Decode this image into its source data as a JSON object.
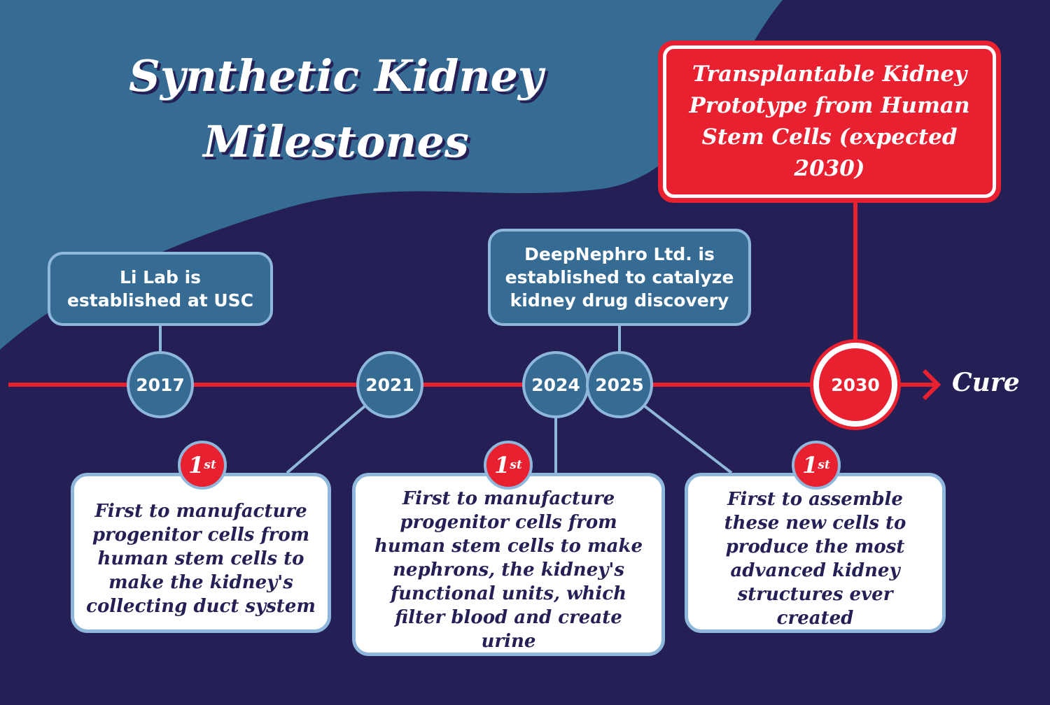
{
  "title": "Synthetic Kidney Milestones",
  "colors": {
    "background": "#241f54",
    "accent_blue": "#366b94",
    "border_light": "#8fb7dc",
    "red": "#e8202f"
  },
  "end_label": "Cure",
  "years": [
    "2017",
    "2021",
    "2024",
    "2025",
    "2030"
  ],
  "top_events": {
    "li_lab": "Li Lab is established at USC",
    "deepnephro": "DeepNephro Ltd. is established to catalyze kidney drug discovery",
    "goal": "Transplantable Kidney Prototype from Human Stem Cells (expected 2030)"
  },
  "badge": {
    "number": "1",
    "suffix": "st"
  },
  "firsts": [
    "First to manufacture progenitor cells from human stem cells to make the kidney's collecting duct system",
    "First to manufacture progenitor cells from human stem cells to make nephrons, the kidney's functional units, which filter blood and create urine",
    "First to assemble these new cells to produce the most advanced kidney structures ever created"
  ]
}
